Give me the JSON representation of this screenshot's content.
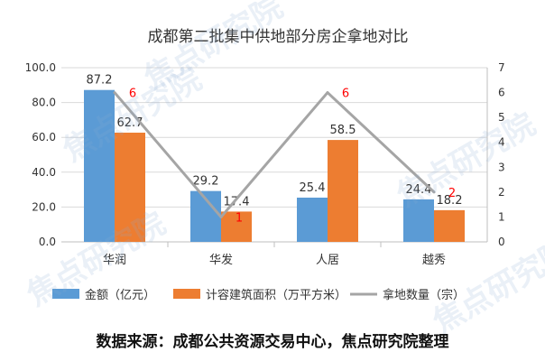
{
  "chart_data": {
    "type": "bar",
    "title": "成都第二批集中供地部分房企拿地对比",
    "categories": [
      "华润",
      "华发",
      "人居",
      "越秀"
    ],
    "series": [
      {
        "name": "金额（亿元）",
        "type": "bar",
        "axis": "left",
        "color": "#5B9BD5",
        "values": [
          87.2,
          29.2,
          25.4,
          24.4
        ],
        "labels": [
          "87.2",
          "29.2",
          "25.4",
          "24.4"
        ]
      },
      {
        "name": "计容建筑面积（万平方米）",
        "type": "bar",
        "axis": "left",
        "color": "#ED7D31",
        "values": [
          62.7,
          17.4,
          58.5,
          18.2
        ],
        "labels": [
          "62.7",
          "17.4",
          "58.5",
          "18.2"
        ]
      },
      {
        "name": "拿地数量（宗）",
        "type": "line",
        "axis": "right",
        "color": "#A5A5A5",
        "values": [
          6,
          1,
          6,
          2
        ],
        "labels": [
          "6",
          "1",
          "6",
          "2"
        ],
        "label_color": "#FF0000"
      }
    ],
    "y_left": {
      "lim": [
        0,
        100
      ],
      "ticks": [
        "0.0",
        "20.0",
        "40.0",
        "60.0",
        "80.0",
        "100.0"
      ]
    },
    "y_right": {
      "lim": [
        0,
        7
      ],
      "ticks": [
        "0",
        "1",
        "2",
        "3",
        "4",
        "5",
        "6",
        "7"
      ]
    },
    "grid": true,
    "legend": "bottom"
  },
  "source_text": "数据来源：成都公共资源交易中心，焦点研究院整理",
  "watermark": "焦点研究院"
}
